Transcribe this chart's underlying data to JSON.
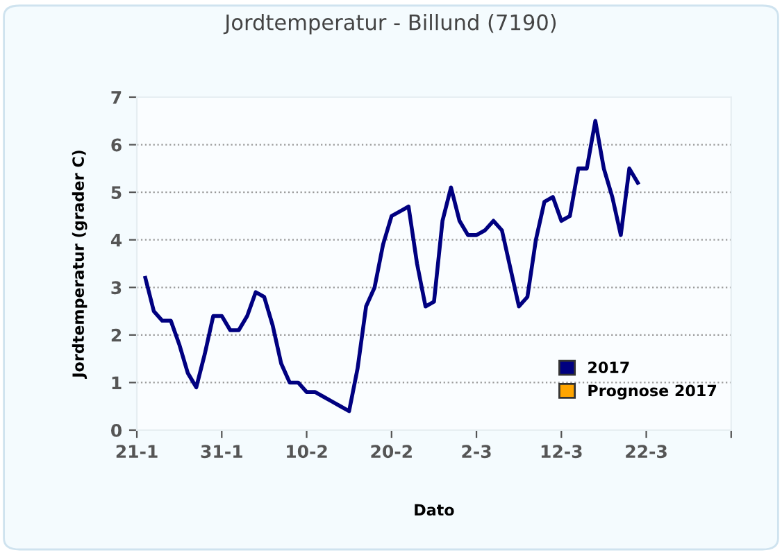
{
  "chart_data": {
    "type": "line",
    "title": "Jordtemperatur - Billund (7190)",
    "xlabel": "Dato",
    "ylabel": "Jordtemperatur (grader C)",
    "xlim": [
      "2017-01-21",
      "2017-04-01"
    ],
    "xticks": [
      {
        "value": "2017-01-21",
        "label": "21-1"
      },
      {
        "value": "2017-01-31",
        "label": "31-1"
      },
      {
        "value": "2017-02-10",
        "label": "10-2"
      },
      {
        "value": "2017-02-20",
        "label": "20-2"
      },
      {
        "value": "2017-03-02",
        "label": "2-3"
      },
      {
        "value": "2017-03-12",
        "label": "12-3"
      },
      {
        "value": "2017-03-22",
        "label": "22-3"
      },
      {
        "value": "2017-04-01",
        "label": null
      }
    ],
    "ylim": [
      0,
      7
    ],
    "yticks": [
      0,
      1,
      2,
      3,
      4,
      5,
      6,
      7
    ],
    "grid": "y",
    "legend": "right",
    "line_style": "solid",
    "marker": "none",
    "x": [
      "2017-01-22",
      "2017-01-23",
      "2017-01-24",
      "2017-01-25",
      "2017-01-26",
      "2017-01-27",
      "2017-01-28",
      "2017-01-29",
      "2017-01-30",
      "2017-01-31",
      "2017-02-01",
      "2017-02-02",
      "2017-02-03",
      "2017-02-04",
      "2017-02-05",
      "2017-02-06",
      "2017-02-07",
      "2017-02-08",
      "2017-02-09",
      "2017-02-10",
      "2017-02-11",
      "2017-02-12",
      "2017-02-13",
      "2017-02-14",
      "2017-02-15",
      "2017-02-16",
      "2017-02-17",
      "2017-02-18",
      "2017-02-19",
      "2017-02-20",
      "2017-02-21",
      "2017-02-22",
      "2017-02-23",
      "2017-02-24",
      "2017-02-25",
      "2017-02-26",
      "2017-02-27",
      "2017-02-28",
      "2017-03-01",
      "2017-03-02",
      "2017-03-03",
      "2017-03-04",
      "2017-03-05",
      "2017-03-06",
      "2017-03-07",
      "2017-03-08",
      "2017-03-09",
      "2017-03-10",
      "2017-03-11",
      "2017-03-12",
      "2017-03-13",
      "2017-03-14",
      "2017-03-15",
      "2017-03-16",
      "2017-03-17",
      "2017-03-18",
      "2017-03-19",
      "2017-03-20",
      "2017-03-21"
    ],
    "series": [
      {
        "name": "2017",
        "color": "#000080",
        "values": [
          3.2,
          2.5,
          2.3,
          2.3,
          1.8,
          1.2,
          0.9,
          1.6,
          2.4,
          2.4,
          2.1,
          2.1,
          2.4,
          2.9,
          2.8,
          2.2,
          1.4,
          1.0,
          1.0,
          0.8,
          0.8,
          0.7,
          0.6,
          0.5,
          0.4,
          1.3,
          2.6,
          3.0,
          3.9,
          4.5,
          4.6,
          4.7,
          3.5,
          2.6,
          2.7,
          4.4,
          5.1,
          4.4,
          4.1,
          4.1,
          4.2,
          4.4,
          4.2,
          3.4,
          2.6,
          2.8,
          4.0,
          4.8,
          4.9,
          4.4,
          4.5,
          5.5,
          5.5,
          6.5,
          5.5,
          4.9,
          4.1,
          5.5,
          5.2
        ]
      },
      {
        "name": "Prognose 2017",
        "color": "#ffa500",
        "values": [
          null,
          null,
          null,
          null,
          null,
          null,
          null,
          null,
          null,
          null,
          null,
          null,
          null,
          null,
          null,
          null,
          null,
          null,
          null,
          null,
          null,
          null,
          null,
          null,
          null,
          null,
          null,
          null,
          null,
          null,
          null,
          null,
          null,
          null,
          null,
          null,
          null,
          null,
          null,
          null,
          null,
          null,
          null,
          null,
          null,
          null,
          null,
          null,
          null,
          null,
          null,
          null,
          null,
          null,
          null,
          null,
          null,
          null,
          null
        ]
      }
    ]
  }
}
